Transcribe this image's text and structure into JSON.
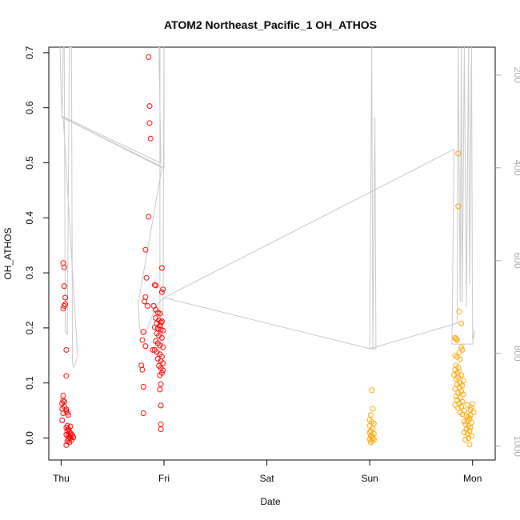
{
  "chart_data": {
    "type": "scatter",
    "title": "ATOM2 Northeast_Pacific_1 OH_ATHOS",
    "xlabel": "Date",
    "ylabel": "OH_ATHOS",
    "x_ticks": [
      "Thu",
      "Fri",
      "Sat",
      "Sun",
      "Mon"
    ],
    "xlim": [
      -0.12,
      4.22
    ],
    "ylim": [
      -0.04,
      0.71
    ],
    "y_ticks": [
      0.0,
      0.1,
      0.2,
      0.3,
      0.4,
      0.5,
      0.6,
      0.7
    ],
    "y2_ticks": [
      200,
      400,
      600,
      800,
      1000
    ],
    "y2lim": [
      1030,
      140
    ],
    "grid": false,
    "colors": {
      "red": "#ff0000",
      "orange": "#ffa500",
      "gray": "#c8c8c8",
      "right_axis": "#aaaaaa"
    },
    "series": [
      {
        "color": "red",
        "points": [
          [
            0.02,
            0.318
          ],
          [
            0.03,
            0.31
          ],
          [
            0.03,
            0.276
          ],
          [
            0.04,
            0.255
          ],
          [
            0.04,
            0.243
          ],
          [
            0.03,
            0.24
          ],
          [
            0.02,
            0.235
          ],
          [
            0.05,
            0.16
          ],
          [
            0.05,
            0.113
          ],
          [
            0.02,
            0.077
          ],
          [
            0.02,
            0.068
          ],
          [
            0.03,
            0.066
          ],
          [
            0.01,
            0.063
          ],
          [
            0.03,
            0.057
          ],
          [
            0.01,
            0.053
          ],
          [
            0.05,
            0.052
          ],
          [
            0.05,
            0.049
          ],
          [
            0.06,
            0.046
          ],
          [
            0.02,
            0.045
          ],
          [
            0.07,
            0.042
          ],
          [
            0.01,
            0.032
          ],
          [
            0.06,
            0.022
          ],
          [
            0.09,
            0.021
          ],
          [
            0.05,
            0.019
          ],
          [
            0.07,
            0.016
          ],
          [
            0.06,
            0.013
          ],
          [
            0.08,
            0.011
          ],
          [
            0.09,
            0.009
          ],
          [
            0.1,
            0.007
          ],
          [
            0.05,
            0.006
          ],
          [
            0.07,
            0.005
          ],
          [
            0.11,
            0.004
          ],
          [
            0.08,
            0.002
          ],
          [
            0.12,
            0.001
          ],
          [
            0.09,
            0.0
          ],
          [
            0.07,
            -0.002
          ],
          [
            0.1,
            -0.004
          ],
          [
            0.06,
            -0.006
          ],
          [
            0.08,
            -0.008
          ],
          [
            0.05,
            -0.013
          ],
          [
            0.85,
            0.692
          ],
          [
            0.86,
            0.603
          ],
          [
            0.86,
            0.572
          ],
          [
            0.87,
            0.544
          ],
          [
            0.85,
            0.402
          ],
          [
            0.82,
            0.342
          ],
          [
            0.83,
            0.291
          ],
          [
            0.91,
            0.278
          ],
          [
            0.92,
            0.277
          ],
          [
            0.98,
            0.309
          ],
          [
            0.99,
            0.27
          ],
          [
            0.98,
            0.265
          ],
          [
            0.82,
            0.256
          ],
          [
            0.81,
            0.248
          ],
          [
            0.84,
            0.24
          ],
          [
            0.9,
            0.24
          ],
          [
            0.92,
            0.233
          ],
          [
            0.94,
            0.228
          ],
          [
            0.96,
            0.226
          ],
          [
            0.92,
            0.218
          ],
          [
            0.95,
            0.214
          ],
          [
            0.98,
            0.212
          ],
          [
            0.97,
            0.21
          ],
          [
            0.93,
            0.208
          ],
          [
            0.96,
            0.204
          ],
          [
            0.91,
            0.201
          ],
          [
            0.94,
            0.199
          ],
          [
            0.97,
            0.197
          ],
          [
            0.99,
            0.195
          ],
          [
            0.93,
            0.19
          ],
          [
            0.95,
            0.186
          ],
          [
            0.98,
            0.182
          ],
          [
            0.92,
            0.176
          ],
          [
            0.94,
            0.172
          ],
          [
            0.96,
            0.168
          ],
          [
            0.99,
            0.165
          ],
          [
            0.91,
            0.16
          ],
          [
            0.93,
            0.156
          ],
          [
            0.96,
            0.152
          ],
          [
            0.98,
            0.148
          ],
          [
            0.94,
            0.144
          ],
          [
            0.97,
            0.14
          ],
          [
            0.99,
            0.136
          ],
          [
            0.95,
            0.131
          ],
          [
            0.97,
            0.127
          ],
          [
            0.99,
            0.123
          ],
          [
            0.98,
            0.118
          ],
          [
            0.96,
            0.114
          ],
          [
            0.8,
            0.193
          ],
          [
            0.79,
            0.178
          ],
          [
            0.82,
            0.167
          ],
          [
            0.89,
            0.16
          ],
          [
            0.78,
            0.132
          ],
          [
            0.79,
            0.124
          ],
          [
            0.8,
            0.093
          ],
          [
            0.97,
            0.098
          ],
          [
            0.96,
            0.088
          ],
          [
            0.97,
            0.059
          ],
          [
            0.8,
            0.045
          ],
          [
            0.97,
            0.025
          ],
          [
            0.97,
            0.016
          ]
        ]
      },
      {
        "color": "orange",
        "points": [
          [
            3.02,
            0.087
          ],
          [
            3.03,
            0.053
          ],
          [
            3.01,
            0.042
          ],
          [
            3.0,
            0.033
          ],
          [
            3.02,
            0.029
          ],
          [
            3.04,
            0.026
          ],
          [
            3.0,
            0.022
          ],
          [
            3.03,
            0.017
          ],
          [
            3.01,
            0.013
          ],
          [
            3.0,
            0.01
          ],
          [
            3.04,
            0.008
          ],
          [
            3.02,
            0.005
          ],
          [
            3.01,
            0.003
          ],
          [
            3.03,
            0.0
          ],
          [
            3.0,
            -0.002
          ],
          [
            3.04,
            -0.003
          ],
          [
            3.02,
            -0.005
          ],
          [
            3.01,
            -0.008
          ],
          [
            3.86,
            0.517
          ],
          [
            3.86,
            0.421
          ],
          [
            3.87,
            0.23
          ],
          [
            3.89,
            0.208
          ],
          [
            3.83,
            0.182
          ],
          [
            3.84,
            0.18
          ],
          [
            3.85,
            0.178
          ],
          [
            3.89,
            0.165
          ],
          [
            3.9,
            0.16
          ],
          [
            3.87,
            0.155
          ],
          [
            3.83,
            0.15
          ],
          [
            3.85,
            0.147
          ],
          [
            3.88,
            0.143
          ],
          [
            3.84,
            0.132
          ],
          [
            3.86,
            0.128
          ],
          [
            3.83,
            0.124
          ],
          [
            3.87,
            0.121
          ],
          [
            3.85,
            0.118
          ],
          [
            3.82,
            0.115
          ],
          [
            3.89,
            0.114
          ],
          [
            3.86,
            0.11
          ],
          [
            3.84,
            0.107
          ],
          [
            3.91,
            0.104
          ],
          [
            3.88,
            0.1
          ],
          [
            3.85,
            0.097
          ],
          [
            3.9,
            0.095
          ],
          [
            3.87,
            0.092
          ],
          [
            3.83,
            0.089
          ],
          [
            3.89,
            0.085
          ],
          [
            3.86,
            0.082
          ],
          [
            3.91,
            0.079
          ],
          [
            3.84,
            0.076
          ],
          [
            3.88,
            0.073
          ],
          [
            3.85,
            0.069
          ],
          [
            3.9,
            0.066
          ],
          [
            3.87,
            0.063
          ],
          [
            3.83,
            0.06
          ],
          [
            3.89,
            0.057
          ],
          [
            3.86,
            0.054
          ],
          [
            3.92,
            0.05
          ],
          [
            3.88,
            0.046
          ],
          [
            3.9,
            0.043
          ],
          [
            3.94,
            0.04
          ],
          [
            3.96,
            0.038
          ],
          [
            3.98,
            0.042
          ],
          [
            3.97,
            0.035
          ],
          [
            3.95,
            0.032
          ],
          [
            3.99,
            0.028
          ],
          [
            3.93,
            0.025
          ],
          [
            3.96,
            0.022
          ],
          [
            3.98,
            0.019
          ],
          [
            3.94,
            0.016
          ],
          [
            3.97,
            0.013
          ],
          [
            3.92,
            0.01
          ],
          [
            3.95,
            0.007
          ],
          [
            3.99,
            0.004
          ],
          [
            3.96,
            0.0
          ],
          [
            3.93,
            -0.003
          ],
          [
            3.97,
            -0.012
          ],
          [
            4.0,
            0.062
          ],
          [
            3.98,
            0.051
          ],
          [
            4.01,
            0.047
          ],
          [
            3.99,
            0.055
          ],
          [
            3.95,
            0.06
          ],
          [
            3.92,
            0.03
          ]
        ]
      }
    ],
    "gray_line": [
      [
        -0.01,
        140
      ],
      [
        0.0,
        240
      ],
      [
        0.01,
        290
      ],
      [
        0.02,
        140
      ],
      [
        0.03,
        140
      ],
      [
        0.04,
        750
      ],
      [
        0.06,
        760
      ],
      [
        0.08,
        140
      ],
      [
        0.1,
        140
      ],
      [
        0.11,
        820
      ],
      [
        0.12,
        830
      ],
      [
        0.14,
        820
      ],
      [
        0.16,
        805
      ],
      [
        0.02,
        290
      ],
      [
        0.97,
        390
      ],
      [
        0.95,
        140
      ],
      [
        0.96,
        140
      ],
      [
        0.96,
        770
      ],
      [
        0.99,
        780
      ],
      [
        1.0,
        140
      ],
      [
        1.0,
        400
      ],
      [
        0.0,
        290
      ],
      [
        0.98,
        400
      ],
      [
        0.75,
        690
      ],
      [
        0.76,
        740
      ],
      [
        0.78,
        760
      ],
      [
        0.82,
        760
      ],
      [
        0.85,
        740
      ],
      [
        0.9,
        710
      ],
      [
        0.95,
        690
      ],
      [
        1.0,
        680
      ],
      [
        3.0,
        790
      ],
      [
        3.02,
        140
      ],
      [
        3.03,
        790
      ],
      [
        3.05,
        290
      ],
      [
        3.06,
        790
      ],
      [
        3.0,
        790
      ],
      [
        3.85,
        735
      ],
      [
        3.86,
        140
      ],
      [
        3.88,
        690
      ],
      [
        3.89,
        140
      ],
      [
        3.9,
        690
      ],
      [
        3.92,
        140
      ],
      [
        3.94,
        700
      ],
      [
        3.96,
        140
      ],
      [
        3.97,
        650
      ],
      [
        3.99,
        140
      ],
      [
        4.0,
        770
      ],
      [
        4.02,
        750
      ],
      [
        4.0,
        780
      ],
      [
        3.8,
        780
      ],
      [
        3.82,
        360
      ],
      [
        1.0,
        680
      ]
    ]
  }
}
